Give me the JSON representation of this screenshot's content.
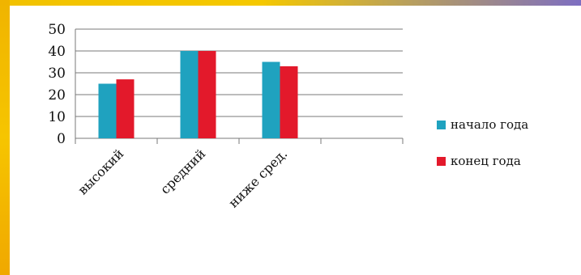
{
  "chart_data": {
    "type": "bar",
    "categories": [
      "высокий",
      "средний",
      "ниже сред.",
      ""
    ],
    "series": [
      {
        "name": "начало года",
        "values": [
          25,
          40,
          35,
          null
        ],
        "color": "#1fa2bf"
      },
      {
        "name": "конец года",
        "values": [
          27,
          40,
          33,
          null
        ],
        "color": "#e3192b"
      }
    ],
    "ylim": [
      0,
      50
    ],
    "yticks": [
      0,
      10,
      20,
      30,
      40,
      50
    ],
    "grid": true,
    "legend_position": "right"
  }
}
